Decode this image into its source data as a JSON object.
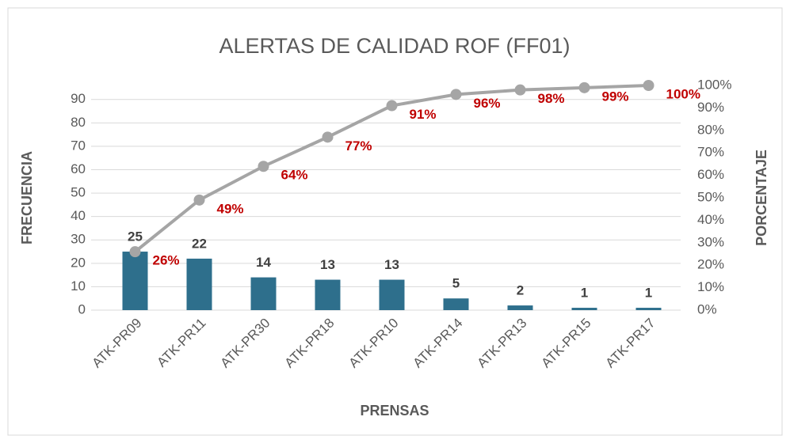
{
  "chart_data": {
    "type": "pareto",
    "title": "ALERTAS DE CALIDAD ROF (FF01)",
    "x_label": "PRENSAS",
    "y_label": "FRECUENCIA",
    "y2_label": "PORCENTAJE",
    "categories": [
      "ATK-PR09",
      "ATK-PR11",
      "ATK-PR30",
      "ATK-PR18",
      "ATK-PR10",
      "ATK-PR14",
      "ATK-PR13",
      "ATK-PR15",
      "ATK-PR17"
    ],
    "series": [
      {
        "type": "bar",
        "color": "#2e6f8c",
        "values": [
          25,
          22,
          14,
          13,
          13,
          5,
          2,
          1,
          1
        ]
      },
      {
        "type": "line",
        "axis": "y2",
        "color": "#a5a5a5",
        "values": [
          26,
          49,
          64,
          77,
          91,
          96,
          98,
          99,
          100
        ],
        "value_labels": [
          "26%",
          "49%",
          "64%",
          "77%",
          "91%",
          "96%",
          "98%",
          "99%",
          "100%"
        ]
      }
    ],
    "ylim": [
      0,
      96
    ],
    "yticks": [
      0,
      10,
      20,
      30,
      40,
      50,
      60,
      70,
      80,
      90
    ],
    "y2lim": [
      0,
      100
    ],
    "y2ticks": [
      {
        "value": 0,
        "label": "0%"
      },
      {
        "value": 10,
        "label": "10%"
      },
      {
        "value": 20,
        "label": "20%"
      },
      {
        "value": 30,
        "label": "30%"
      },
      {
        "value": 40,
        "label": "40%"
      },
      {
        "value": 50,
        "label": "50%"
      },
      {
        "value": 60,
        "label": "60%"
      },
      {
        "value": 70,
        "label": "70%"
      },
      {
        "value": 80,
        "label": "80%"
      },
      {
        "value": 90,
        "label": "90%"
      },
      {
        "value": 100,
        "label": "100%"
      }
    ],
    "grid": true
  }
}
